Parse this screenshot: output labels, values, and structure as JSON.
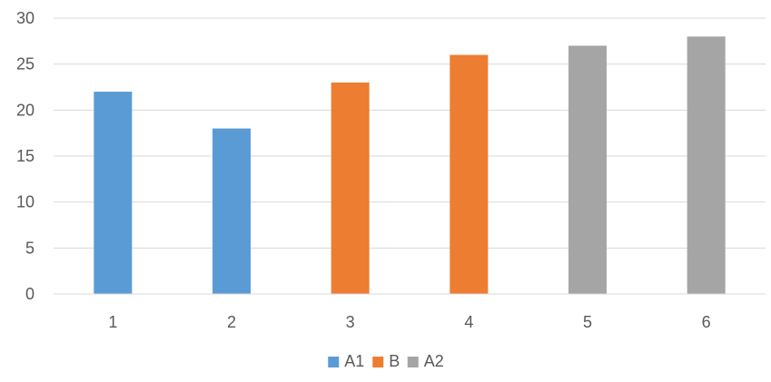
{
  "chart_data": {
    "type": "bar",
    "title": "",
    "xlabel": "",
    "ylabel": "",
    "categories": [
      "1",
      "2",
      "3",
      "4",
      "5",
      "6"
    ],
    "ylim": [
      0,
      30
    ],
    "yticks": [
      0,
      5,
      10,
      15,
      20,
      25,
      30
    ],
    "grid": true,
    "legend_position": "bottom",
    "series": [
      {
        "name": "A1",
        "color": "#5B9BD5",
        "values": [
          22,
          18,
          null,
          null,
          null,
          null
        ]
      },
      {
        "name": "B",
        "color": "#ED7D31",
        "values": [
          null,
          null,
          23,
          26,
          null,
          null
        ]
      },
      {
        "name": "A2",
        "color": "#A5A5A5",
        "values": [
          null,
          null,
          null,
          null,
          27,
          28
        ]
      }
    ]
  },
  "style": {
    "gridline_color": "#D9D9D9",
    "axis_color": "#D9D9D9",
    "text_color": "#595959"
  }
}
